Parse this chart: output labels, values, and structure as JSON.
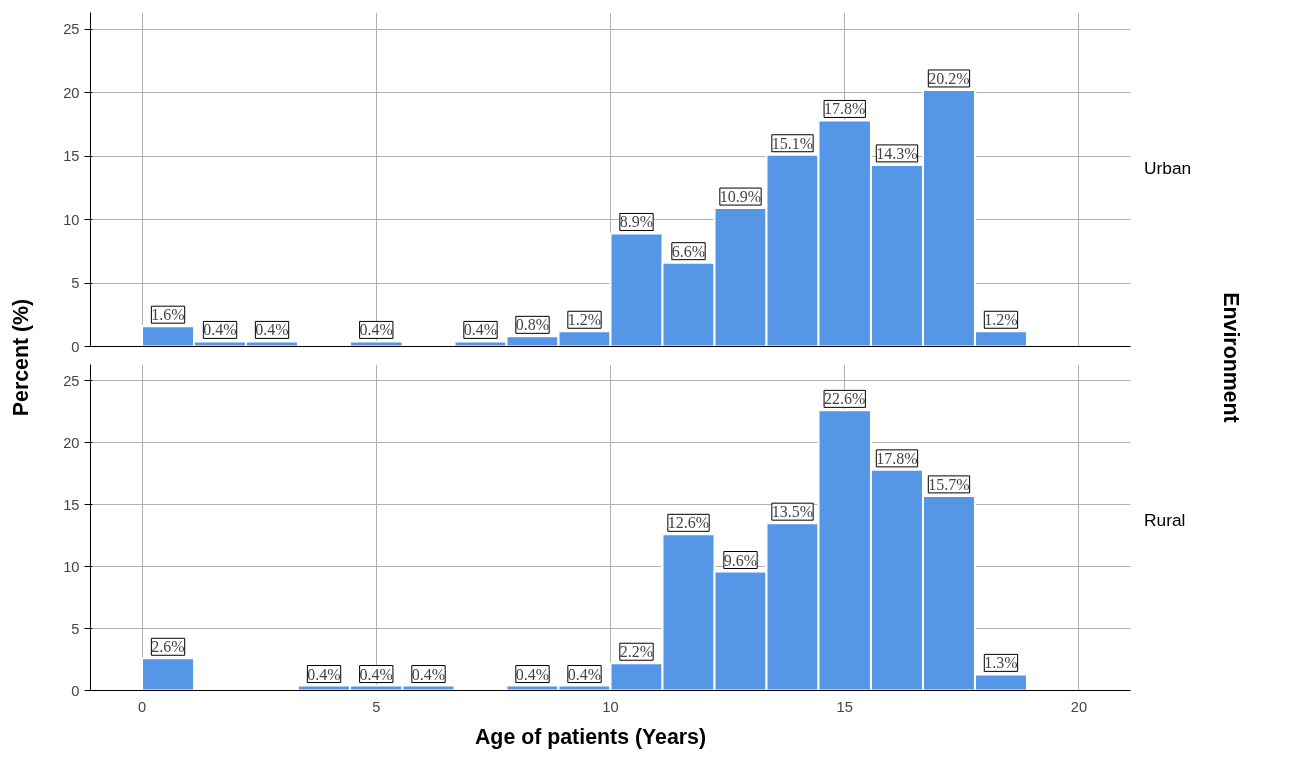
{
  "chart_data": [
    {
      "type": "histogram",
      "ylabel": "Percent (%)",
      "y2label": "Environment",
      "annotations": [
        "Urban"
      ],
      "color": "#5596e6",
      "grid": true,
      "tick_labels": "y",
      "bins": [
        0,
        1.11,
        2.22,
        3.33,
        4.44,
        5.56,
        6.67,
        7.78,
        8.89,
        10,
        11.11,
        12.22,
        13.33,
        14.44,
        15.56,
        16.67,
        17.78,
        18.89
      ],
      "values": [
        1.6,
        0.4,
        0.4,
        0,
        0.4,
        0,
        0.4,
        0.8,
        1.2,
        8.9,
        6.6,
        10.9,
        15.1,
        17.8,
        14.3,
        20.2,
        1.2
      ],
      "value_labels": [
        "1.6%",
        "0.4%",
        "0.4%",
        null,
        "0.4%",
        null,
        "0.4%",
        "0.8%",
        "1.2%",
        "8.9%",
        "6.6%",
        "10.9%",
        "15.1%",
        "17.8%",
        "14.3%",
        "20.2%",
        "1.2%"
      ],
      "xlim": [
        -1.1,
        21.1
      ],
      "xticks": [
        0,
        5,
        10,
        15,
        20
      ],
      "ylim": [
        0,
        26.3
      ],
      "yticks": [
        0,
        5,
        10,
        15,
        20,
        25
      ]
    },
    {
      "type": "histogram",
      "xlabel": "Age of patients (Years)",
      "annotations": [
        "Rural"
      ],
      "color": "#5596e6",
      "grid": true,
      "bins": [
        0,
        1.11,
        2.22,
        3.33,
        4.44,
        5.56,
        6.67,
        7.78,
        8.89,
        10,
        11.11,
        12.22,
        13.33,
        14.44,
        15.56,
        16.67,
        17.78,
        18.89
      ],
      "values": [
        2.6,
        0,
        0,
        0.4,
        0.4,
        0.4,
        0,
        0.4,
        0.4,
        2.2,
        12.6,
        9.6,
        13.5,
        22.6,
        17.8,
        15.7,
        1.3
      ],
      "value_labels": [
        "2.6%",
        null,
        null,
        "0.4%",
        "0.4%",
        "0.4%",
        null,
        "0.4%",
        "0.4%",
        "2.2%",
        "12.6%",
        "9.6%",
        "13.5%",
        "22.6%",
        "17.8%",
        "15.7%",
        "1.3%"
      ],
      "xlim": [
        -1.1,
        21.1
      ],
      "xticks": [
        0,
        5,
        10,
        15,
        20
      ],
      "ylim": [
        0,
        26.3
      ],
      "yticks": [
        0,
        5,
        10,
        15,
        20,
        25
      ]
    }
  ]
}
